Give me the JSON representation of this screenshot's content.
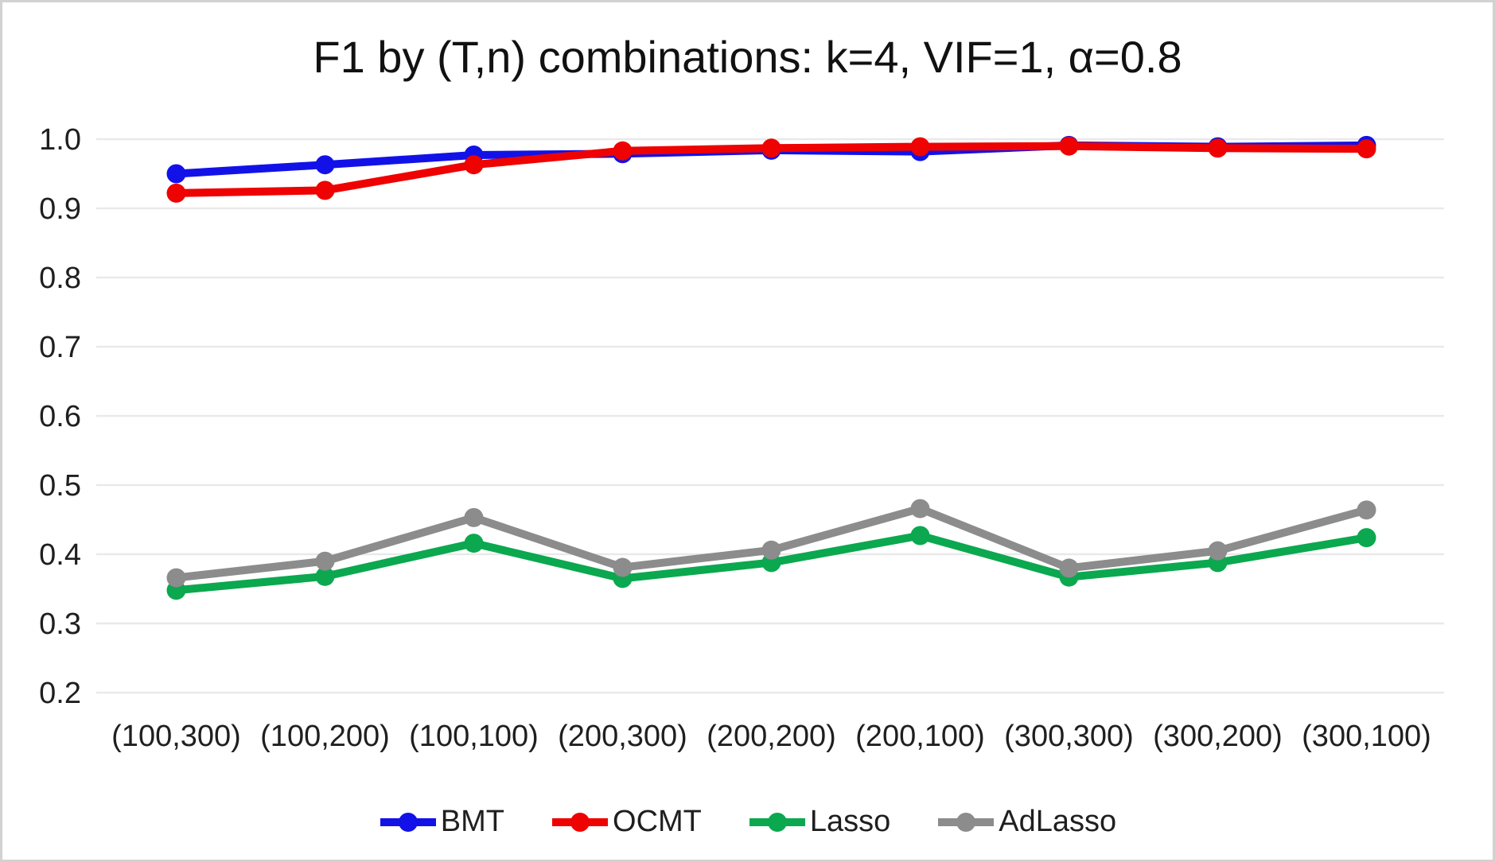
{
  "chart_data": {
    "type": "line",
    "title": "F1 by (T,n) combinations: k=4, VIF=1, α=0.8",
    "categories": [
      "(100,300)",
      "(100,200)",
      "(100,100)",
      "(200,300)",
      "(200,200)",
      "(200,100)",
      "(300,300)",
      "(300,200)",
      "(300,100)"
    ],
    "series": [
      {
        "name": "BMT",
        "color": "#1212e8",
        "values": [
          0.95,
          0.963,
          0.977,
          0.979,
          0.984,
          0.982,
          0.991,
          0.989,
          0.991
        ]
      },
      {
        "name": "OCMT",
        "color": "#ee0202",
        "values": [
          0.922,
          0.926,
          0.963,
          0.983,
          0.987,
          0.989,
          0.99,
          0.987,
          0.986
        ]
      },
      {
        "name": "Lasso",
        "color": "#0ba84f",
        "values": [
          0.348,
          0.368,
          0.416,
          0.365,
          0.388,
          0.427,
          0.367,
          0.388,
          0.424
        ]
      },
      {
        "name": "AdLasso",
        "color": "#8c8c8c",
        "values": [
          0.366,
          0.39,
          0.453,
          0.381,
          0.406,
          0.466,
          0.38,
          0.405,
          0.464
        ]
      }
    ],
    "ylim": [
      0.2,
      1.0
    ],
    "ytick_labels": [
      "1.0",
      "0.9",
      "0.8",
      "0.7",
      "0.6",
      "0.5",
      "0.4",
      "0.3",
      "0.2"
    ],
    "yticks": [
      1.0,
      0.9,
      0.8,
      0.7,
      0.6,
      0.5,
      0.4,
      0.3,
      0.2
    ],
    "grid": "horizontal",
    "legend_position": "bottom",
    "colors": {
      "gridline": "#e9e9e9",
      "axis_text": "#1f1f1f",
      "title_text": "#111111",
      "frame_border": "#d2d2d2",
      "background": "#ffffff"
    }
  }
}
